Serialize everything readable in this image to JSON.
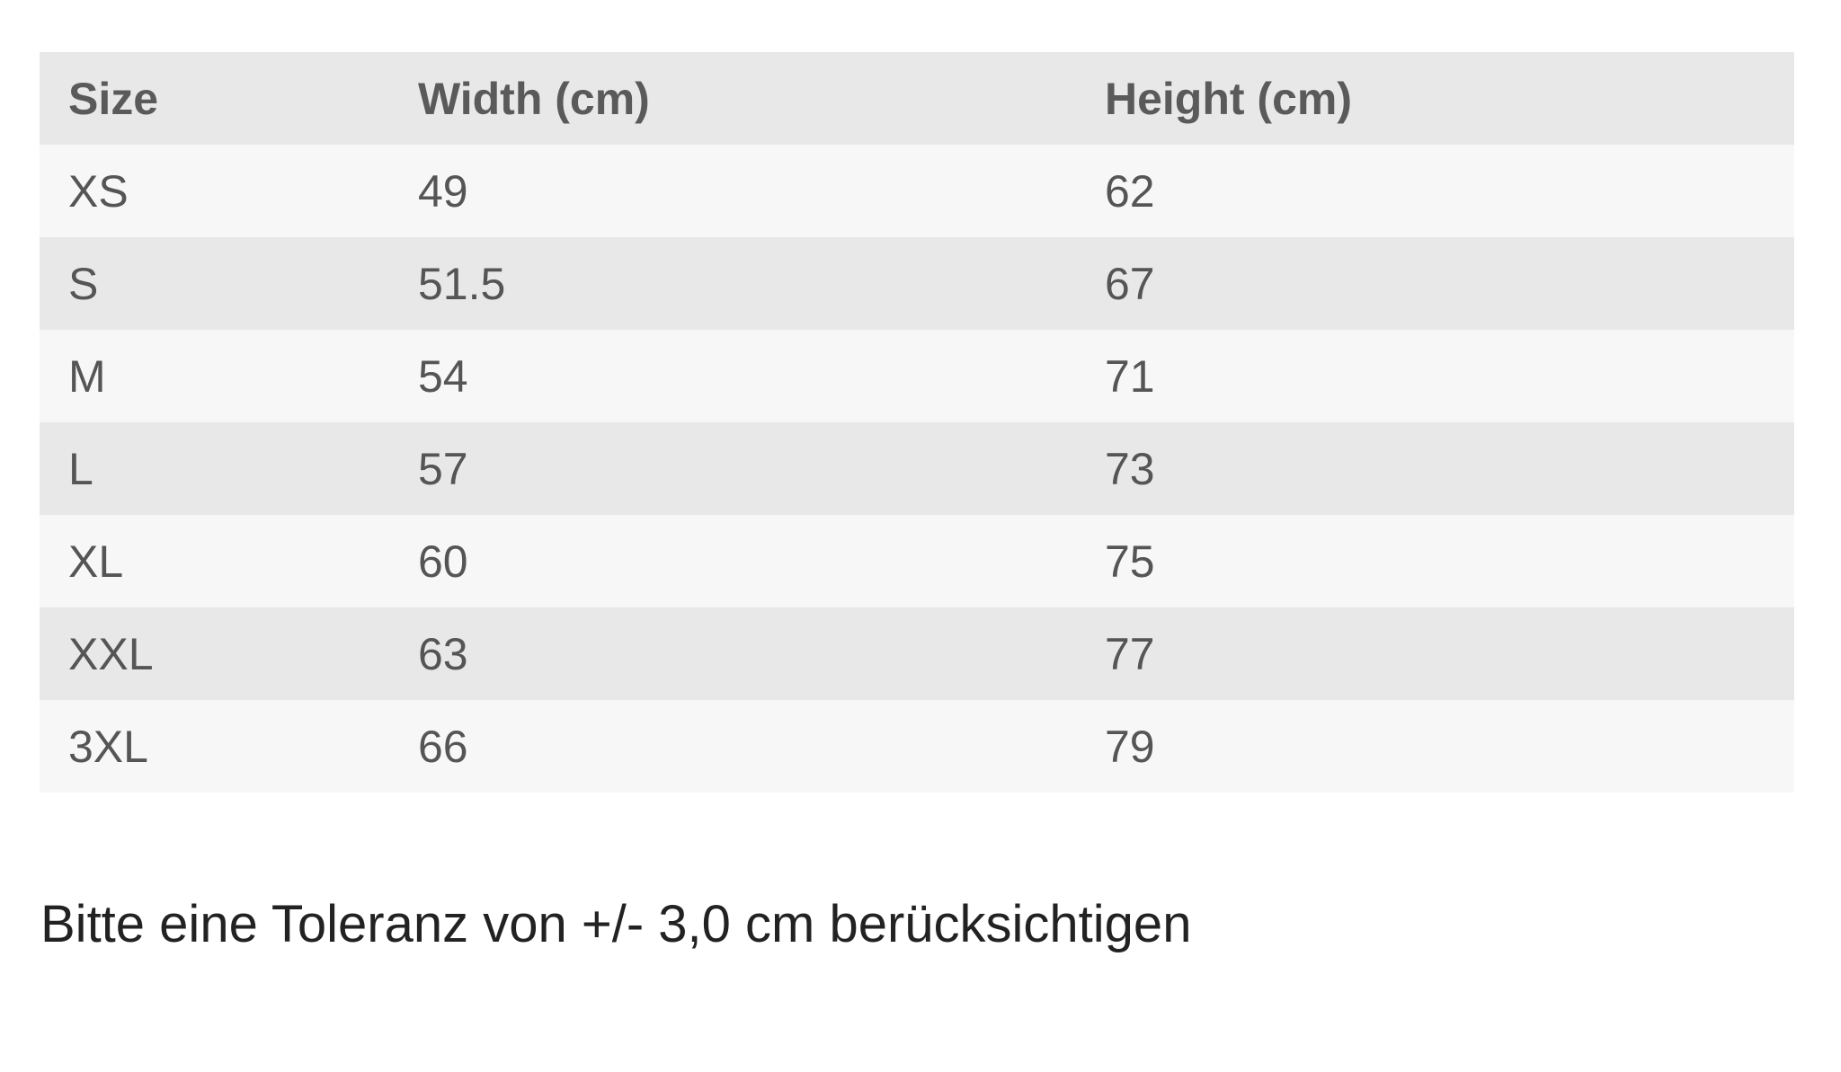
{
  "table": {
    "headers": [
      "Size",
      "Width (cm)",
      "Height (cm)"
    ],
    "rows": [
      [
        "XS",
        "49",
        "62"
      ],
      [
        "S",
        "51.5",
        "67"
      ],
      [
        "M",
        "54",
        "71"
      ],
      [
        "L",
        "57",
        "73"
      ],
      [
        "XL",
        "60",
        "75"
      ],
      [
        "XXL",
        "63",
        "77"
      ],
      [
        "3XL",
        "66",
        "79"
      ]
    ]
  },
  "note": "Bitte eine Toleranz von +/- 3,0 cm berücksichtigen"
}
